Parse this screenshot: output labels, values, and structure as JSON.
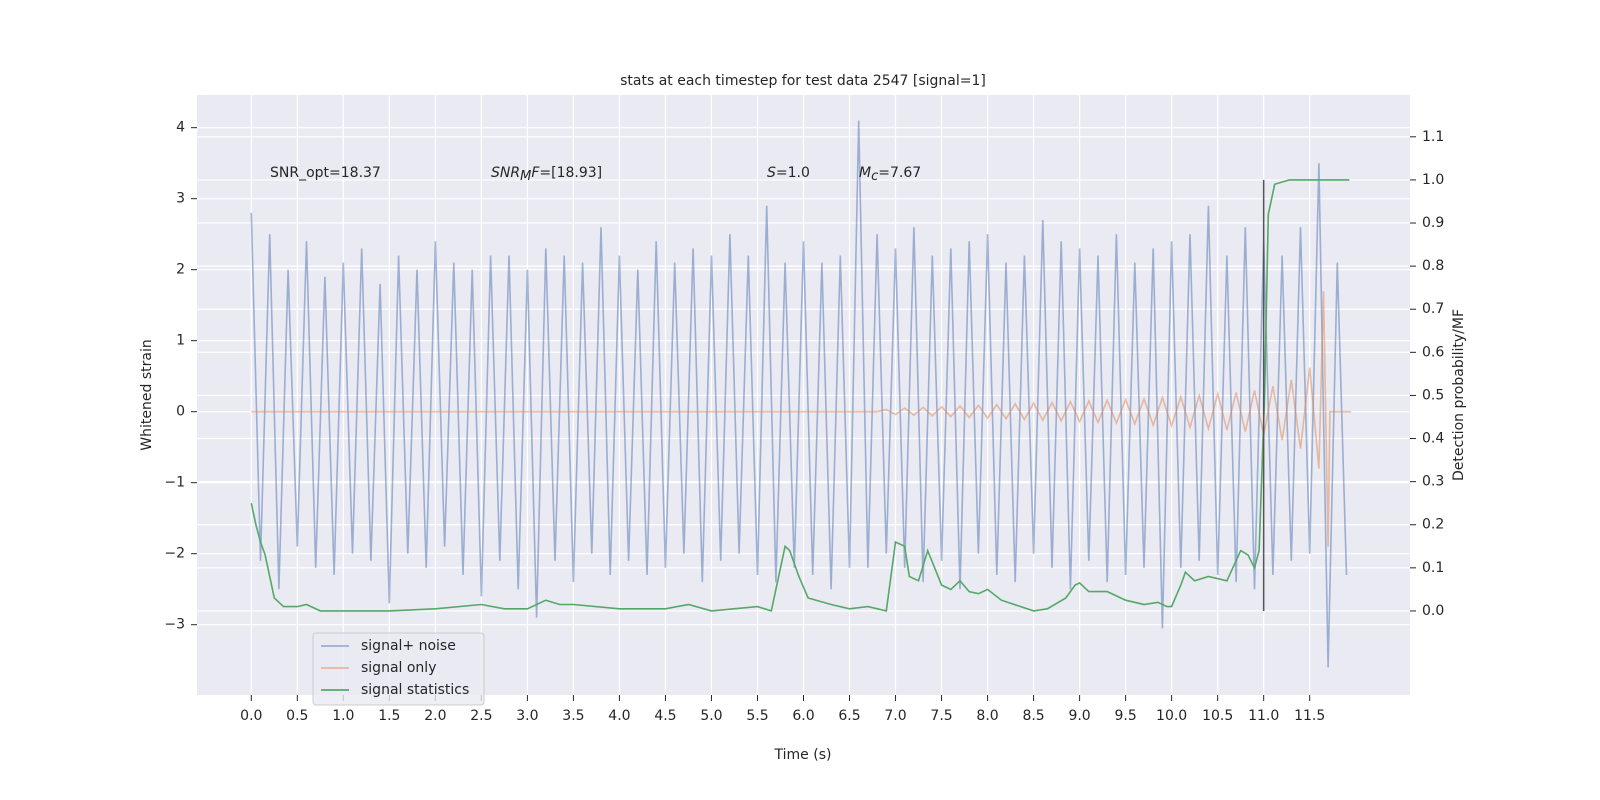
{
  "chart_data": {
    "type": "line",
    "title": "stats at each timestep for test data 2547 [signal=1]",
    "x_label": "Time (s)",
    "y_label": "Whitened strain",
    "y2_label": "Detection probability/MF",
    "xlim": [
      -0.59,
      12.59
    ],
    "ylim": [
      -3.99,
      4.46
    ],
    "y2lim": [
      -0.195,
      1.197
    ],
    "xticks": [
      {
        "value": 0,
        "label": "0.0"
      },
      {
        "value": 0.5,
        "label": "0.5"
      },
      {
        "value": 1,
        "label": "1.0"
      },
      {
        "value": 1.5,
        "label": "1.5"
      },
      {
        "value": 2,
        "label": "2.0"
      },
      {
        "value": 2.5,
        "label": "2.5"
      },
      {
        "value": 3,
        "label": "3.0"
      },
      {
        "value": 3.5,
        "label": "3.5"
      },
      {
        "value": 4,
        "label": "4.0"
      },
      {
        "value": 4.5,
        "label": "4.5"
      },
      {
        "value": 5,
        "label": "5.0"
      },
      {
        "value": 5.5,
        "label": "5.5"
      },
      {
        "value": 6,
        "label": "6.0"
      },
      {
        "value": 6.5,
        "label": "6.5"
      },
      {
        "value": 7,
        "label": "7.0"
      },
      {
        "value": 7.5,
        "label": "7.5"
      },
      {
        "value": 8,
        "label": "8.0"
      },
      {
        "value": 8.5,
        "label": "8.5"
      },
      {
        "value": 9,
        "label": "9.0"
      },
      {
        "value": 9.5,
        "label": "9.5"
      },
      {
        "value": 10,
        "label": "10.0"
      },
      {
        "value": 10.5,
        "label": "10.5"
      },
      {
        "value": 11,
        "label": "11.0"
      },
      {
        "value": 11.5,
        "label": "11.5"
      }
    ],
    "yticks": [
      {
        "value": -3,
        "label": "−3"
      },
      {
        "value": -2,
        "label": "−2"
      },
      {
        "value": -1,
        "label": "−1"
      },
      0,
      1,
      2,
      3,
      4
    ],
    "y2ticks": [
      {
        "value": 0,
        "label": "0.0"
      },
      {
        "value": 0.1,
        "label": "0.1"
      },
      {
        "value": 0.2,
        "label": "0.2"
      },
      {
        "value": 0.3,
        "label": "0.3"
      },
      {
        "value": 0.4,
        "label": "0.4"
      },
      {
        "value": 0.5,
        "label": "0.5"
      },
      {
        "value": 0.6,
        "label": "0.6"
      },
      {
        "value": 0.7,
        "label": "0.7"
      },
      {
        "value": 0.8,
        "label": "0.8"
      },
      {
        "value": 0.9,
        "label": "0.9"
      },
      {
        "value": 1,
        "label": "1.0"
      },
      {
        "value": 1.1,
        "label": "1.1"
      }
    ],
    "grid": true,
    "legend": "lower left",
    "annotations": [
      [
        {
          "text": "SNR_opt=18.37",
          "style": "normal"
        }
      ],
      [
        {
          "text": "SNR",
          "style": "italic"
        },
        {
          "text": "M",
          "style": "sub"
        },
        {
          "text": "F",
          "style": "italic"
        },
        {
          "text": "=[18.93]",
          "style": "normal"
        }
      ],
      [
        {
          "text": "S",
          "style": "italic"
        },
        {
          "text": "=1.0",
          "style": "normal"
        }
      ],
      [
        {
          "text": "M",
          "style": "italic"
        },
        {
          "text": "c",
          "style": "sub"
        },
        {
          "text": "=7.67",
          "style": "normal"
        }
      ]
    ],
    "vline": {
      "x": 11,
      "ymin": 0,
      "ymax": 1,
      "axis": "y2",
      "color": "#555555"
    },
    "series": [
      {
        "name": "signal+ noise",
        "color": "#4c72b0",
        "opacity": 0.5,
        "x": [
          0,
          0.1,
          0.2,
          0.3,
          0.4,
          0.5,
          0.6,
          0.7,
          0.8,
          0.9,
          1,
          1.1,
          1.2,
          1.3,
          1.4,
          1.5,
          1.6,
          1.7,
          1.8,
          1.9,
          2,
          2.1,
          2.2,
          2.3,
          2.4,
          2.5,
          2.6,
          2.7,
          2.8,
          2.9,
          3,
          3.1,
          3.2,
          3.3,
          3.4,
          3.5,
          3.6,
          3.7,
          3.8,
          3.9,
          4,
          4.1,
          4.2,
          4.3,
          4.4,
          4.5,
          4.6,
          4.7,
          4.8,
          4.9,
          5,
          5.1,
          5.2,
          5.3,
          5.4,
          5.5,
          5.6,
          5.7,
          5.8,
          5.9,
          6,
          6.1,
          6.2,
          6.3,
          6.4,
          6.5,
          6.6,
          6.7,
          6.8,
          6.9,
          7,
          7.1,
          7.2,
          7.3,
          7.4,
          7.5,
          7.6,
          7.7,
          7.8,
          7.9,
          8,
          8.1,
          8.2,
          8.3,
          8.4,
          8.5,
          8.6,
          8.7,
          8.8,
          8.9,
          9,
          9.1,
          9.2,
          9.3,
          9.4,
          9.5,
          9.6,
          9.7,
          9.8,
          9.9,
          10,
          10.1,
          10.2,
          10.3,
          10.4,
          10.5,
          10.6,
          10.7,
          10.8,
          10.9,
          11,
          11.1,
          11.2,
          11.3,
          11.4,
          11.5,
          11.6,
          11.7,
          11.8,
          11.9
        ],
        "values": [
          2.8,
          -2.1,
          2.5,
          -2.5,
          2.0,
          -1.9,
          2.4,
          -2.2,
          1.9,
          -2.3,
          2.1,
          -2.0,
          2.3,
          -2.1,
          1.8,
          -2.7,
          2.2,
          -2.0,
          2.0,
          -2.2,
          2.4,
          -1.9,
          2.1,
          -2.3,
          2.0,
          -2.6,
          2.2,
          -2.1,
          2.2,
          -2.5,
          2.0,
          -2.9,
          2.3,
          -2.1,
          2.2,
          -2.4,
          2.1,
          -2.0,
          2.6,
          -2.3,
          2.2,
          -2.1,
          2.0,
          -2.3,
          2.4,
          -2.2,
          2.1,
          -2.0,
          2.3,
          -2.4,
          2.2,
          -2.1,
          2.5,
          -2.0,
          2.2,
          -2.3,
          2.9,
          -2.4,
          2.1,
          -2.2,
          2.4,
          -2.3,
          2.1,
          -2.5,
          2.2,
          -2.2,
          4.1,
          -2.2,
          2.5,
          -2.0,
          2.3,
          -2.2,
          2.6,
          -2.4,
          2.2,
          -2.1,
          2.3,
          -2.5,
          2.4,
          -2.0,
          2.5,
          -2.3,
          2.1,
          -2.4,
          2.2,
          -2.0,
          2.7,
          -2.2,
          2.4,
          -2.5,
          2.3,
          -2.1,
          2.2,
          -2.4,
          2.5,
          -2.3,
          2.1,
          -2.2,
          2.3,
          -3.05,
          2.4,
          -2.2,
          2.5,
          -2.1,
          2.9,
          -2.3,
          2.2,
          -2.4,
          2.6,
          -2.5,
          2.4,
          -2.3,
          2.2,
          -2.1,
          2.6,
          -2.0,
          3.5,
          -3.6,
          2.1,
          -2.3
        ]
      },
      {
        "name": "signal only",
        "color": "#dd8452",
        "opacity": 0.5,
        "x": [
          0,
          6.8,
          6.9,
          7,
          7.1,
          7.2,
          7.3,
          7.4,
          7.5,
          7.6,
          7.7,
          7.8,
          7.9,
          8,
          8.1,
          8.2,
          8.3,
          8.4,
          8.5,
          8.6,
          8.7,
          8.8,
          8.9,
          9,
          9.1,
          9.2,
          9.3,
          9.4,
          9.5,
          9.6,
          9.7,
          9.8,
          9.9,
          10,
          10.1,
          10.2,
          10.3,
          10.4,
          10.5,
          10.6,
          10.7,
          10.8,
          10.9,
          11,
          11.1,
          11.2,
          11.3,
          11.4,
          11.5,
          11.6,
          11.65,
          11.7,
          11.72,
          11.95
        ],
        "values": [
          0,
          0,
          0.03,
          -0.04,
          0.05,
          -0.05,
          0.06,
          -0.06,
          0.07,
          -0.07,
          0.08,
          -0.08,
          0.09,
          -0.09,
          0.1,
          -0.1,
          0.11,
          -0.11,
          0.12,
          -0.12,
          0.13,
          -0.13,
          0.14,
          -0.14,
          0.15,
          -0.15,
          0.16,
          -0.16,
          0.17,
          -0.17,
          0.18,
          -0.19,
          0.2,
          -0.2,
          0.21,
          -0.22,
          0.23,
          -0.24,
          0.25,
          -0.26,
          0.27,
          -0.28,
          0.3,
          -0.33,
          0.36,
          -0.4,
          0.45,
          -0.52,
          0.62,
          -0.8,
          1.7,
          -1.9,
          0,
          0
        ]
      },
      {
        "name": "signal statistics",
        "color": "#55a868",
        "axis": "y2",
        "x": [
          0,
          0.05,
          0.1,
          0.15,
          0.25,
          0.35,
          0.5,
          0.6,
          0.75,
          1,
          1.5,
          2,
          2.5,
          2.75,
          3,
          3.2,
          3.35,
          3.5,
          4,
          4.5,
          4.75,
          5,
          5.5,
          5.65,
          5.8,
          5.85,
          5.95,
          6.05,
          6.3,
          6.5,
          6.7,
          6.9,
          7,
          7.1,
          7.15,
          7.25,
          7.35,
          7.5,
          7.6,
          7.7,
          7.8,
          7.9,
          8,
          8.15,
          8.5,
          8.65,
          8.85,
          8.95,
          9,
          9.1,
          9.3,
          9.5,
          9.7,
          9.85,
          9.95,
          10,
          10.1,
          10.15,
          10.25,
          10.4,
          10.6,
          10.75,
          10.83,
          10.9,
          10.95,
          11.01,
          11.05,
          11.12,
          11.28,
          11.93
        ],
        "values": [
          0.25,
          0.2,
          0.16,
          0.13,
          0.03,
          0.01,
          0.01,
          0.015,
          0,
          0,
          0,
          0.005,
          0.015,
          0.005,
          0.005,
          0.025,
          0.015,
          0.015,
          0.005,
          0.005,
          0.015,
          0,
          0.01,
          0,
          0.15,
          0.14,
          0.08,
          0.03,
          0.015,
          0.005,
          0.01,
          0,
          0.16,
          0.15,
          0.08,
          0.07,
          0.14,
          0.06,
          0.05,
          0.07,
          0.045,
          0.04,
          0.05,
          0.025,
          0,
          0.005,
          0.03,
          0.06,
          0.065,
          0.045,
          0.045,
          0.025,
          0.015,
          0.02,
          0.01,
          0.01,
          0.06,
          0.09,
          0.07,
          0.08,
          0.07,
          0.14,
          0.13,
          0.1,
          0.14,
          0.5,
          0.92,
          0.99,
          1,
          1
        ]
      }
    ]
  }
}
